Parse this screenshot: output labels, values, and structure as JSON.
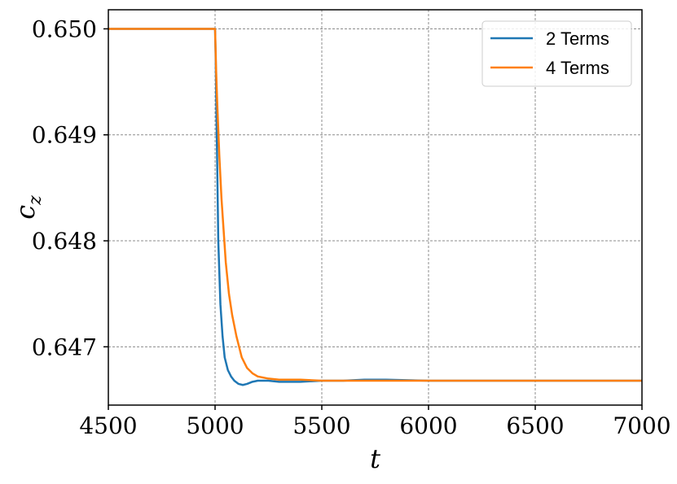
{
  "chart_data": {
    "type": "line",
    "title": "",
    "xlabel": "t",
    "ylabel": "c_z",
    "xlim": [
      4500,
      7000
    ],
    "ylim": [
      0.64645,
      0.65018
    ],
    "grid": true,
    "legend_position": "top-right",
    "xticks": [
      4500,
      5000,
      5500,
      6000,
      6500,
      7000
    ],
    "xtick_labels": [
      "4500",
      "5000",
      "5500",
      "6000",
      "6500",
      "7000"
    ],
    "yticks": [
      0.647,
      0.648,
      0.649,
      0.65
    ],
    "ytick_labels": [
      "0.647",
      "0.648",
      "0.649",
      "0.650"
    ],
    "series": [
      {
        "name": "2 Terms",
        "color": "#1f77b4",
        "x": [
          4500,
          5000,
          5003,
          5008,
          5015,
          5025,
          5035,
          5045,
          5060,
          5075,
          5090,
          5110,
          5130,
          5150,
          5175,
          5200,
          5250,
          5300,
          5400,
          5500,
          5600,
          5700,
          5800,
          6000,
          6500,
          7000
        ],
        "y": [
          0.65,
          0.65,
          0.6497,
          0.649,
          0.648,
          0.6474,
          0.6471,
          0.6469,
          0.64678,
          0.64672,
          0.64668,
          0.64665,
          0.64664,
          0.64665,
          0.64667,
          0.64668,
          0.64668,
          0.64667,
          0.64667,
          0.64668,
          0.64668,
          0.64669,
          0.64669,
          0.64668,
          0.64668,
          0.64668
        ]
      },
      {
        "name": "4 Terms",
        "color": "#ff7f0e",
        "x": [
          4500,
          5000,
          5005,
          5010,
          5020,
          5030,
          5040,
          5050,
          5065,
          5080,
          5100,
          5125,
          5150,
          5175,
          5200,
          5250,
          5300,
          5350,
          5400,
          5500,
          5600,
          5800,
          6000,
          6500,
          7000
        ],
        "y": [
          0.65,
          0.65,
          0.6496,
          0.6493,
          0.6488,
          0.6484,
          0.6481,
          0.6478,
          0.6475,
          0.6473,
          0.6471,
          0.6469,
          0.6468,
          0.64675,
          0.64672,
          0.6467,
          0.64669,
          0.64669,
          0.64669,
          0.64668,
          0.64668,
          0.64668,
          0.64668,
          0.64668,
          0.64668
        ]
      }
    ]
  }
}
